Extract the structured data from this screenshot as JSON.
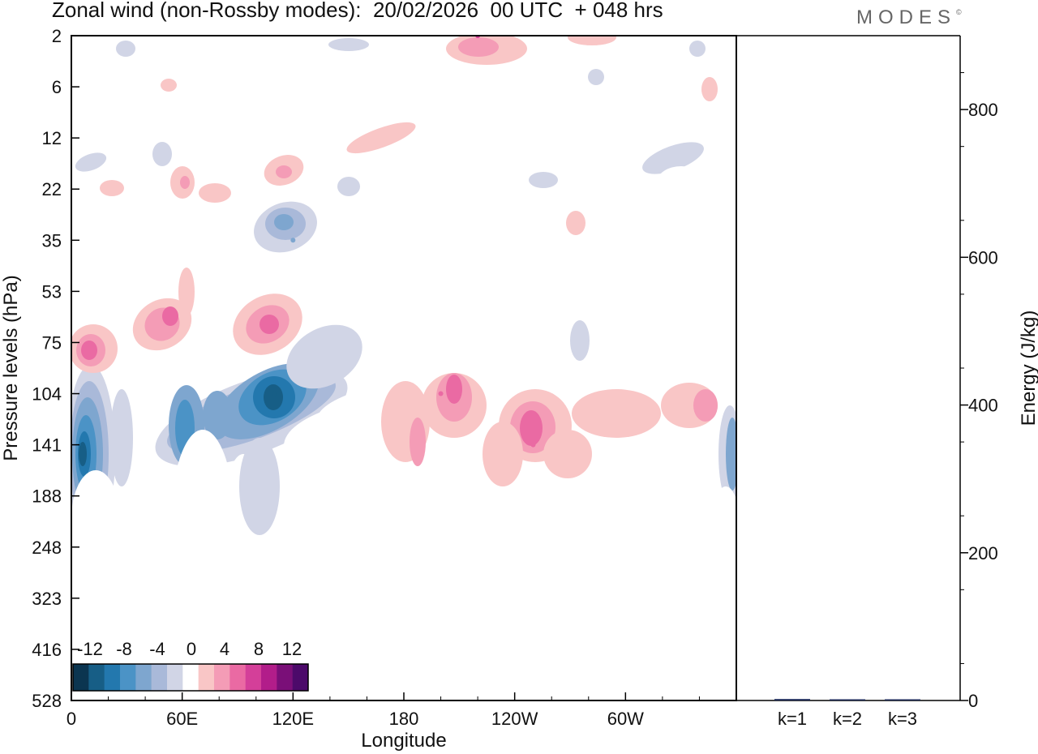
{
  "header": {
    "title": "Zonal wind (non-Rossby modes):  20/02/2026  00 UTC  + 048 hrs",
    "logo_text": "MODES",
    "logo_mark": "©"
  },
  "chart_data": [
    {
      "type": "heatmap",
      "title": "Zonal wind (non-Rossby modes):  20/02/2026  00 UTC  + 048 hrs",
      "xlabel": "Longitude",
      "ylabel": "Pressure levels (hPa)",
      "x_tick_labels": [
        "0",
        "60E",
        "120E",
        "180",
        "120W",
        "60W"
      ],
      "x_tick_values_deg": [
        0,
        60,
        120,
        180,
        240,
        300
      ],
      "xlim_deg": [
        0,
        360
      ],
      "y_tick_labels": [
        "2",
        "6",
        "12",
        "22",
        "35",
        "53",
        "75",
        "104",
        "141",
        "188",
        "248",
        "323",
        "416",
        "528"
      ],
      "colorbar": {
        "tick_labels": [
          "-12",
          "-8",
          "-4",
          "0",
          "4",
          "8",
          "12"
        ],
        "levels": [
          -14,
          -12,
          -10,
          -8,
          -6,
          -4,
          -2,
          2,
          4,
          6,
          8,
          10,
          12,
          14
        ],
        "colors": [
          "#0b3550",
          "#175e86",
          "#2378ae",
          "#4b93c6",
          "#7ea6cf",
          "#a9b9d9",
          "#d1d5e6",
          "#ffffff",
          "#ffffff",
          "#f9c6c6",
          "#f49cb6",
          "#ea6aa3",
          "#d43f99",
          "#b21d8a",
          "#7a0f78",
          "#4c0a6a"
        ]
      },
      "features": [
        {
          "name": "jet-core-negative-west",
          "lon": 6,
          "level": "141",
          "value": -14
        },
        {
          "name": "jet-core-negative-east",
          "lon": 110,
          "level": "104",
          "value": -14
        },
        {
          "name": "pos-band-pacific",
          "lon": 200,
          "level": "104",
          "value": 8
        },
        {
          "name": "pos-band-pacific-2",
          "lon": 250,
          "level": "141",
          "value": 8
        },
        {
          "name": "neg-band-stratosphere",
          "lon": 120,
          "level": "35",
          "value": -8
        },
        {
          "name": "pos-band-top",
          "lon": 220,
          "level": "2",
          "value": 10
        }
      ]
    },
    {
      "type": "bar",
      "categories": [
        "k=1",
        "k=2",
        "k=3"
      ],
      "values": [
        2,
        1,
        0.5
      ],
      "ylabel": "Energy (J/kg)",
      "y_tick_labels": [
        "0",
        "200",
        "400",
        "600",
        "800"
      ],
      "ylim": [
        0,
        900
      ]
    }
  ]
}
